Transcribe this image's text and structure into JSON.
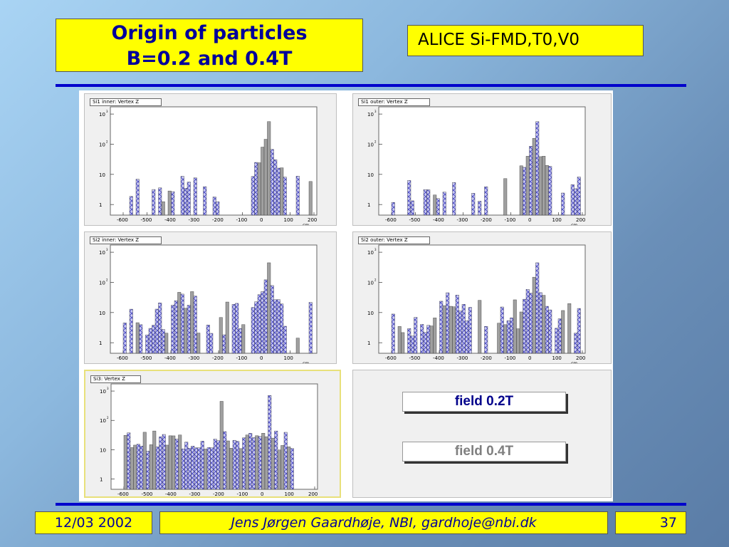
{
  "slide": {
    "title_line1": "Origin of particles",
    "title_line2": "B=0.2 and 0.4T",
    "experiment": "ALICE Si-FMD,T0,V0"
  },
  "footer": {
    "date": "12/03 2002",
    "author": "Jens Jørgen Gaardhøje, NBI, gardhoje@nbi.dk",
    "page": "37"
  },
  "legend": {
    "field1": "field 0.2T",
    "field2": "field 0.4T",
    "field1_color": "#00008b",
    "field2_color": "#7f7f7f"
  },
  "colors": {
    "accent_rule": "#0000cc",
    "title_bg": "#ffff00",
    "hatch": "#4040c0",
    "gray_hist": "#a0a0a0"
  },
  "histograms": [
    {
      "label": "Si1 inner: Vertex Z"
    },
    {
      "label": "Si1 outer: Vertex Z"
    },
    {
      "label": "Si2 inner: Vertex Z"
    },
    {
      "label": "Si2 outer: Vertex Z"
    },
    {
      "label": "Si3: Vertex Z"
    }
  ],
  "axis": {
    "x_ticks": [
      "-600",
      "-500",
      "-400",
      "-300",
      "-200",
      "-100",
      "0",
      "100",
      "200"
    ],
    "x_ticks_short": [
      "-600",
      "-500",
      "-400",
      "-300",
      "-200",
      "-100",
      "0",
      "100"
    ],
    "x_unit": "cm",
    "y_ticks": [
      "10",
      "10",
      "10",
      "1"
    ],
    "y_exps": [
      "3",
      "2",
      ""
    ]
  }
}
